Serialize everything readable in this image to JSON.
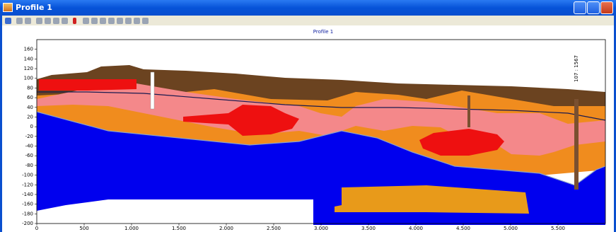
{
  "window": {
    "title": "Profile 1"
  },
  "chart_data": {
    "type": "profile",
    "title": "Profile 1",
    "annotations": [
      "107 : 1567"
    ],
    "xlim": [
      0,
      6000
    ],
    "xticks": [
      0,
      500,
      {
        "value": 1000,
        "label": "1.000"
      },
      {
        "value": 1500,
        "label": "1.500"
      },
      {
        "value": 2000,
        "label": "2.000"
      },
      {
        "value": 2500,
        "label": "2.500"
      },
      {
        "value": 3000,
        "label": "3.000"
      },
      {
        "value": 3500,
        "label": "3.500"
      },
      {
        "value": 4000,
        "label": "4.000"
      },
      {
        "value": 4500,
        "label": "4.500"
      },
      {
        "value": 5000,
        "label": "5.000"
      },
      {
        "value": 5500,
        "label": "5.500"
      }
    ],
    "ylim": [
      -200,
      180
    ],
    "yticks": [
      160,
      140,
      120,
      100,
      80,
      60,
      40,
      20,
      0,
      -20,
      -40,
      -60,
      -80,
      -100,
      -120,
      -140,
      -160,
      -180,
      -200
    ]
  }
}
